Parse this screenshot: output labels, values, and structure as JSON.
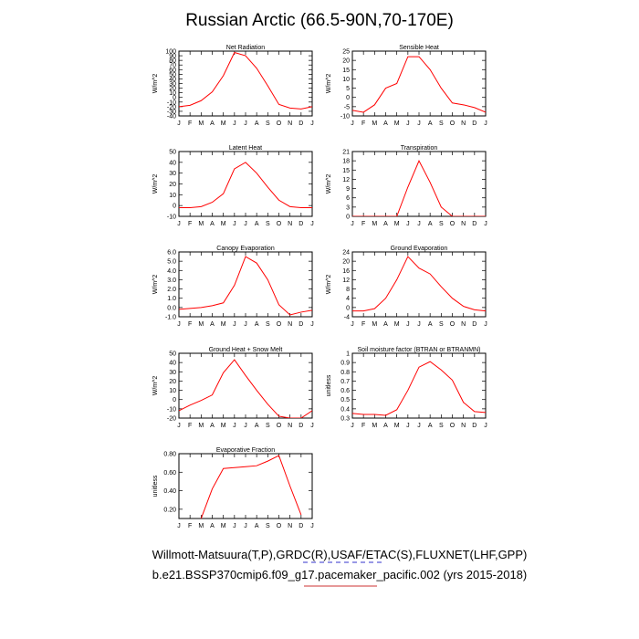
{
  "figure": {
    "title": "Russian Arctic (66.5-90N,70-170E)",
    "footer_line1": "Willmott-Matsuura(T,P),GRDC(R),USAF/ETAC(S),FLUXNET(LHF,GPP)",
    "footer_line2": "b.e21.BSSP370cmip6.f09_g17.pacemaker_pacific.002 (yrs 2015-2018)",
    "line_color": "#ff0000",
    "footer_underline_color": "#3333cc",
    "footer_underline2_color": "#cc3333"
  },
  "chart_data": [
    {
      "type": "line",
      "title": "Net Radiation",
      "ylabel": "W/m^2",
      "categories": [
        "J",
        "F",
        "M",
        "A",
        "M",
        "J",
        "J",
        "A",
        "S",
        "O",
        "N",
        "D",
        "J"
      ],
      "ylim": [
        -40,
        100
      ],
      "yticks": [
        -40,
        -30,
        -20,
        -10,
        0,
        10,
        20,
        30,
        40,
        50,
        60,
        70,
        80,
        90,
        100
      ],
      "values": [
        -20,
        -17,
        -7,
        12,
        47,
        97,
        90,
        63,
        25,
        -15,
        -23,
        -25,
        -20
      ]
    },
    {
      "type": "line",
      "title": "Sensible Heat",
      "ylabel": "W/m^2",
      "categories": [
        "J",
        "F",
        "M",
        "A",
        "M",
        "J",
        "J",
        "A",
        "S",
        "O",
        "N",
        "D",
        "J"
      ],
      "ylim": [
        -10,
        25
      ],
      "yticks": [
        -10,
        -5,
        0,
        5,
        10,
        15,
        20,
        25
      ],
      "values": [
        -7,
        -8,
        -4,
        5,
        7.5,
        22,
        22,
        15,
        5,
        -3,
        -4,
        -5.5,
        -8
      ]
    },
    {
      "type": "line",
      "title": "Latent Heat",
      "ylabel": "W/m^2",
      "categories": [
        "J",
        "F",
        "M",
        "A",
        "M",
        "J",
        "J",
        "A",
        "S",
        "O",
        "N",
        "D",
        "J"
      ],
      "ylim": [
        -10,
        50
      ],
      "yticks": [
        -10,
        0,
        10,
        20,
        30,
        40,
        50
      ],
      "values": [
        -2,
        -2,
        -1,
        3,
        11,
        34,
        40,
        30,
        17,
        5,
        -1,
        -2,
        -2
      ]
    },
    {
      "type": "line",
      "title": "Transpiration",
      "ylabel": "W/m^2",
      "categories": [
        "J",
        "F",
        "M",
        "A",
        "M",
        "J",
        "J",
        "A",
        "S",
        "O",
        "N",
        "D",
        "J"
      ],
      "ylim": [
        0,
        21
      ],
      "yticks": [
        0,
        3,
        6,
        9,
        12,
        15,
        18,
        21
      ],
      "values": [
        0,
        0,
        0,
        0,
        0,
        9.5,
        18,
        11,
        3,
        0,
        0,
        0,
        0
      ]
    },
    {
      "type": "line",
      "title": "Canopy Evaporation",
      "ylabel": "W/m^2",
      "categories": [
        "J",
        "F",
        "M",
        "A",
        "M",
        "J",
        "J",
        "A",
        "S",
        "O",
        "N",
        "D",
        "J"
      ],
      "ylim": [
        -1.0,
        6.0
      ],
      "yticks": [
        -1.0,
        0,
        1.0,
        2.0,
        3.0,
        4.0,
        5.0,
        6.0
      ],
      "yticklabels": [
        "-1.0",
        "0.0",
        "1.0",
        "2.0",
        "3.0",
        "4.0",
        "5.0",
        "6.0"
      ],
      "values": [
        -0.2,
        -0.1,
        0.0,
        0.2,
        0.5,
        2.4,
        5.5,
        4.8,
        3.0,
        0.3,
        -0.8,
        -0.5,
        -0.3
      ]
    },
    {
      "type": "line",
      "title": "Ground Evaporation",
      "ylabel": "W/m^2",
      "categories": [
        "J",
        "F",
        "M",
        "A",
        "M",
        "J",
        "J",
        "A",
        "S",
        "O",
        "N",
        "D",
        "J"
      ],
      "ylim": [
        -4,
        24
      ],
      "yticks": [
        -4,
        0,
        4,
        8,
        12,
        16,
        20,
        24
      ],
      "values": [
        -1.5,
        -1.5,
        -0.5,
        4,
        12,
        22,
        17,
        14.5,
        9,
        4,
        0.5,
        -1,
        -1.5
      ]
    },
    {
      "type": "line",
      "title": "Ground Heat + Snow Melt",
      "ylabel": "W/m^2",
      "categories": [
        "J",
        "F",
        "M",
        "A",
        "M",
        "J",
        "J",
        "A",
        "S",
        "O",
        "N",
        "D",
        "J"
      ],
      "ylim": [
        -20,
        50
      ],
      "yticks": [
        -20,
        -10,
        0,
        10,
        20,
        30,
        40,
        50
      ],
      "values": [
        -12,
        -6,
        -1,
        5,
        29,
        43,
        26,
        10,
        -5,
        -18,
        -20,
        -20,
        -12
      ]
    },
    {
      "type": "line",
      "title": "Soil moisture factor (BTRAN or BTRANMN)",
      "ylabel": "unitless",
      "categories": [
        "J",
        "F",
        "M",
        "A",
        "M",
        "J",
        "J",
        "A",
        "S",
        "O",
        "N",
        "D",
        "J"
      ],
      "ylim": [
        0.3,
        1.0
      ],
      "yticks": [
        0.3,
        0.4,
        0.5,
        0.6,
        0.7,
        0.8,
        0.9,
        1.0
      ],
      "values": [
        0.35,
        0.34,
        0.34,
        0.33,
        0.39,
        0.6,
        0.85,
        0.91,
        0.82,
        0.71,
        0.47,
        0.37,
        0.36
      ]
    },
    {
      "type": "line",
      "title": "Evaporative Fraction",
      "ylabel": "unitless",
      "categories": [
        "J",
        "F",
        "M",
        "A",
        "M",
        "J",
        "J",
        "A",
        "S",
        "O",
        "N",
        "D",
        "J"
      ],
      "ylim": [
        0.1,
        0.8
      ],
      "yticks": [
        0.2,
        0.4,
        0.6,
        0.8
      ],
      "yticklabels": [
        "0.20",
        "0.40",
        "0.60",
        "0.80"
      ],
      "values": [
        null,
        null,
        0.1,
        0.42,
        0.64,
        0.65,
        0.66,
        0.67,
        0.72,
        0.78,
        0.45,
        0.14,
        null
      ]
    }
  ]
}
